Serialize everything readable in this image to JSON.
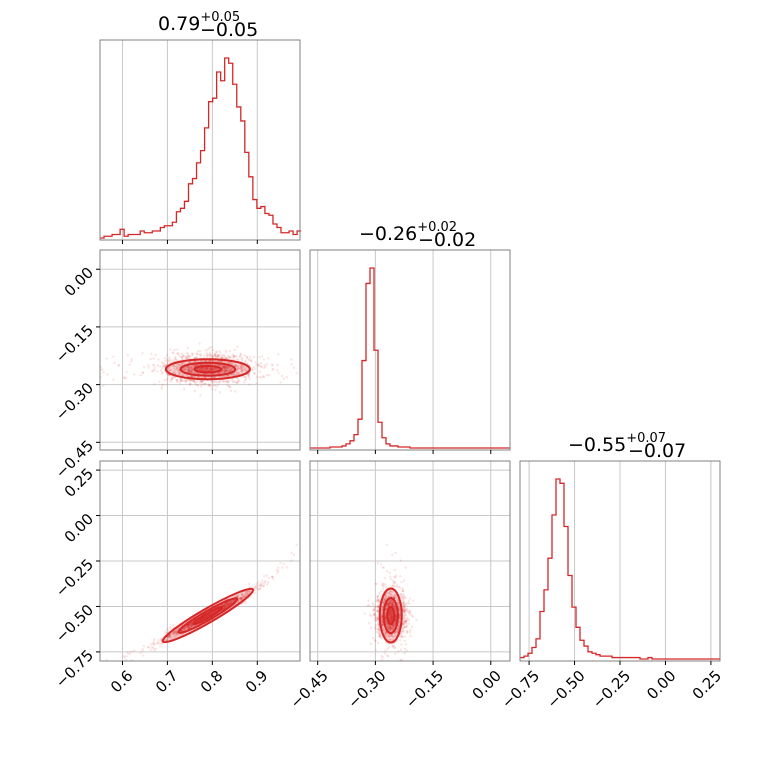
{
  "chart_data": {
    "type": "corner",
    "color": "#d62728",
    "parameters": [
      {
        "title_value": "0.79",
        "title_plus": "+0.05",
        "title_minus": "−0.05",
        "range": [
          0.55,
          0.995
        ],
        "ticks": [
          0.6,
          0.7,
          0.8,
          0.9
        ],
        "tick_labels": [
          "0.6",
          "0.7",
          "0.8",
          "0.9"
        ],
        "median": 0.79,
        "sigma": 0.05
      },
      {
        "title_value": "−0.26",
        "title_plus": "+0.02",
        "title_minus": "−0.02",
        "range": [
          -0.47,
          0.05
        ],
        "ticks": [
          -0.45,
          -0.3,
          -0.15,
          0.0
        ],
        "tick_labels": [
          "−0.45",
          "−0.30",
          "−0.15",
          "0.00"
        ],
        "median": -0.26,
        "sigma": 0.02
      },
      {
        "title_value": "−0.55",
        "title_plus": "+0.07",
        "title_minus": "−0.07",
        "range": [
          -0.8,
          0.3
        ],
        "ticks": [
          -0.75,
          -0.5,
          -0.25,
          0.0,
          0.25
        ],
        "tick_labels": [
          "−0.75",
          "−0.50",
          "−0.25",
          "0.00",
          "0.25"
        ],
        "median": -0.55,
        "sigma": 0.07
      }
    ],
    "histograms": [
      {
        "bin_start": 0.55,
        "bin_width": 0.00895,
        "counts": [
          0,
          1,
          1,
          2,
          2,
          5,
          1,
          2,
          2,
          2,
          4,
          3,
          3,
          4,
          4,
          6,
          7,
          7,
          9,
          15,
          17,
          21,
          31,
          34,
          43,
          50,
          63,
          78,
          80,
          95,
          90,
          103,
          100,
          88,
          75,
          67,
          49,
          35,
          22,
          17,
          18,
          14,
          13,
          8,
          6,
          3,
          3,
          4,
          2,
          4
        ]
      },
      {
        "bin_start": -0.47,
        "bin_width": 0.0104,
        "counts": [
          0,
          0,
          0,
          0,
          0,
          1,
          1,
          1,
          2,
          4,
          7,
          13,
          28,
          85,
          160,
          175,
          95,
          25,
          10,
          4,
          2,
          2,
          1,
          1,
          1,
          0,
          0,
          0,
          0,
          0,
          0,
          0,
          0,
          0,
          0,
          0,
          0,
          0,
          0,
          0,
          0,
          0,
          0,
          0,
          0,
          0,
          0,
          0,
          0,
          0
        ]
      },
      {
        "bin_start": -0.8,
        "bin_width": 0.022,
        "counts": [
          1,
          2,
          4,
          8,
          14,
          33,
          48,
          70,
          100,
          125,
          122,
          92,
          58,
          36,
          22,
          13,
          9,
          5,
          4,
          3,
          2,
          2,
          2,
          1,
          1,
          1,
          1,
          1,
          1,
          1,
          0,
          0,
          1,
          0,
          0,
          0,
          0,
          0,
          0,
          0,
          0,
          0,
          0,
          0,
          0,
          0,
          0,
          0,
          0,
          0
        ]
      }
    ],
    "correlations": {
      "p1_p0": 0.05,
      "p2_p0": 0.98,
      "p2_p1": 0.55
    }
  }
}
